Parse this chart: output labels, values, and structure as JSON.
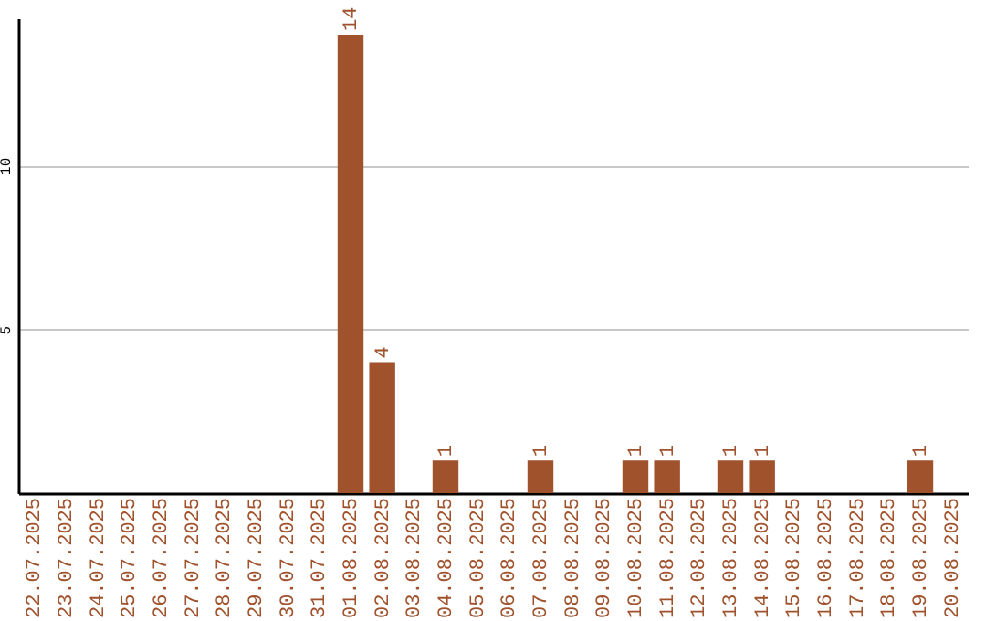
{
  "chart_data": {
    "type": "bar",
    "categories": [
      "22.07.2025",
      "23.07.2025",
      "24.07.2025",
      "25.07.2025",
      "26.07.2025",
      "27.07.2025",
      "28.07.2025",
      "29.07.2025",
      "30.07.2025",
      "31.07.2025",
      "01.08.2025",
      "02.08.2025",
      "03.08.2025",
      "04.08.2025",
      "05.08.2025",
      "06.08.2025",
      "07.08.2025",
      "08.08.2025",
      "09.08.2025",
      "10.08.2025",
      "11.08.2025",
      "12.08.2025",
      "13.08.2025",
      "14.08.2025",
      "15.08.2025",
      "16.08.2025",
      "17.08.2025",
      "18.08.2025",
      "19.08.2025",
      "20.08.2025"
    ],
    "values": [
      0,
      0,
      0,
      0,
      0,
      0,
      0,
      0,
      0,
      0,
      14,
      4,
      0,
      1,
      0,
      0,
      1,
      0,
      0,
      1,
      1,
      0,
      1,
      1,
      0,
      0,
      0,
      0,
      1,
      0
    ],
    "value_labels": [
      null,
      null,
      null,
      null,
      null,
      null,
      null,
      null,
      null,
      null,
      "14",
      "4",
      null,
      "1",
      null,
      null,
      "1",
      null,
      null,
      "1",
      "1",
      null,
      "1",
      "1",
      null,
      null,
      null,
      null,
      "1",
      null
    ],
    "color": "#a0522d",
    "ylim": [
      0,
      14.5
    ],
    "yticks": [
      5,
      10
    ],
    "grid": "y"
  }
}
